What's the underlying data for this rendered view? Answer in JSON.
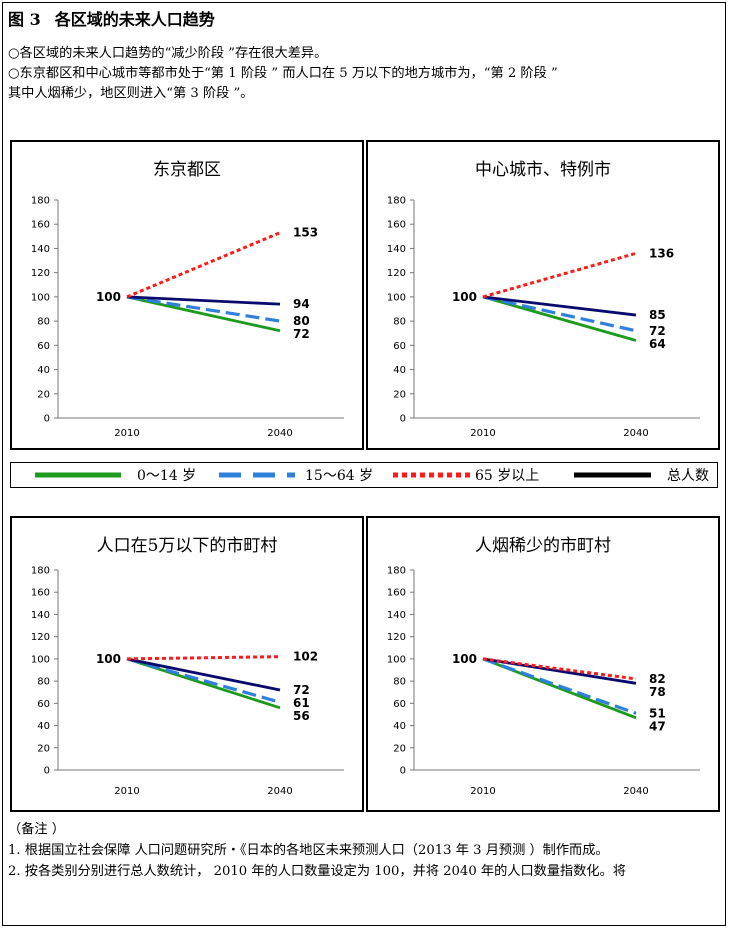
{
  "figure": {
    "number": "图 3",
    "title": "各区域的未来人口趋势"
  },
  "intro": [
    "○各区域的未来人口趋势的“减少阶段 ”存在很大差异。",
    "○东京都区和中心城市等都市处于“第 1 阶段 ” 而人口在 5 万以下的地方城市为，“第 2 阶段 ”",
    "其中人烟稀少，地区则进入“第 3 阶段 ”。"
  ],
  "legend": [
    {
      "label": "0～14 岁",
      "color": "#1e9a1e",
      "dash": "solid"
    },
    {
      "label": "15～64 岁",
      "color": "#2f7fdc",
      "dash": "dashed"
    },
    {
      "label": "65 岁以上",
      "color": "#ff1a1a",
      "dash": "dotted"
    },
    {
      "label": "总人数",
      "color": "#000000",
      "dash": "solid"
    }
  ],
  "chart_data": [
    {
      "type": "line",
      "title": "东京都区",
      "categories": [
        "2010",
        "2040"
      ],
      "ylim": [
        0,
        180
      ],
      "yticks": [
        "0",
        "20",
        "40",
        "60",
        "80",
        "100",
        "120",
        "140",
        "160",
        "180"
      ],
      "start_label": "100",
      "grid": false,
      "series": [
        {
          "name": "0～14 岁",
          "values": [
            100,
            72
          ],
          "color": "#1e9a1e",
          "label": "72"
        },
        {
          "name": "15～64 岁",
          "values": [
            100,
            80
          ],
          "color": "#2f7fdc",
          "label": "80"
        },
        {
          "name": "65 岁以上",
          "values": [
            100,
            153
          ],
          "color": "#ff1a1a",
          "label": "153"
        },
        {
          "name": "总人数",
          "values": [
            100,
            94
          ],
          "color": "#0a0a6e",
          "label": "94"
        }
      ]
    },
    {
      "type": "line",
      "title": "中心城市、特例市",
      "categories": [
        "2010",
        "2040"
      ],
      "ylim": [
        0,
        180
      ],
      "yticks": [
        "0",
        "20",
        "40",
        "60",
        "80",
        "100",
        "120",
        "140",
        "160",
        "180"
      ],
      "start_label": "100",
      "grid": false,
      "series": [
        {
          "name": "0～14 岁",
          "values": [
            100,
            64
          ],
          "color": "#1e9a1e",
          "label": "64"
        },
        {
          "name": "15～64 岁",
          "values": [
            100,
            72
          ],
          "color": "#2f7fdc",
          "label": "72"
        },
        {
          "name": "65 岁以上",
          "values": [
            100,
            136
          ],
          "color": "#ff1a1a",
          "label": "136"
        },
        {
          "name": "总人数",
          "values": [
            100,
            85
          ],
          "color": "#0a0a6e",
          "label": "85"
        }
      ]
    },
    {
      "type": "line",
      "title": "人口在5万以下的市町村",
      "categories": [
        "2010",
        "2040"
      ],
      "ylim": [
        0,
        180
      ],
      "yticks": [
        "0",
        "20",
        "40",
        "60",
        "80",
        "100",
        "120",
        "140",
        "160",
        "180"
      ],
      "start_label": "100",
      "grid": false,
      "series": [
        {
          "name": "0～14 岁",
          "values": [
            100,
            56
          ],
          "color": "#1e9a1e",
          "label": "56"
        },
        {
          "name": "15～64 岁",
          "values": [
            100,
            61
          ],
          "color": "#2f7fdc",
          "label": "61"
        },
        {
          "name": "65 岁以上",
          "values": [
            100,
            102
          ],
          "color": "#ff1a1a",
          "label": "102"
        },
        {
          "name": "总人数",
          "values": [
            100,
            72
          ],
          "color": "#0a0a6e",
          "label": "72"
        }
      ]
    },
    {
      "type": "line",
      "title": "人烟稀少的市町村",
      "categories": [
        "2010",
        "2040"
      ],
      "ylim": [
        0,
        180
      ],
      "yticks": [
        "0",
        "20",
        "40",
        "60",
        "80",
        "100",
        "120",
        "140",
        "160",
        "180"
      ],
      "start_label": "100",
      "grid": false,
      "series": [
        {
          "name": "0～14 岁",
          "values": [
            100,
            47
          ],
          "color": "#1e9a1e",
          "label": "47"
        },
        {
          "name": "15～64 岁",
          "values": [
            100,
            51
          ],
          "color": "#2f7fdc",
          "label": "51"
        },
        {
          "name": "65 岁以上",
          "values": [
            100,
            82
          ],
          "color": "#ff1a1a",
          "label": "82"
        },
        {
          "name": "总人数",
          "values": [
            100,
            78
          ],
          "color": "#0a0a6e",
          "label": "78"
        }
      ]
    }
  ],
  "notes": {
    "heading": "（备注 ）",
    "items": [
      "1.  根据国立社会保障 人口问题研究所・《日本的各地区未来预测人口（2013 年 3 月预测 ）制作而成。",
      "2.  按各类别分别进行总人数统计， 2010 年的人口数量设定为 100，并将 2040 年的人口数量指数化。将"
    ]
  }
}
